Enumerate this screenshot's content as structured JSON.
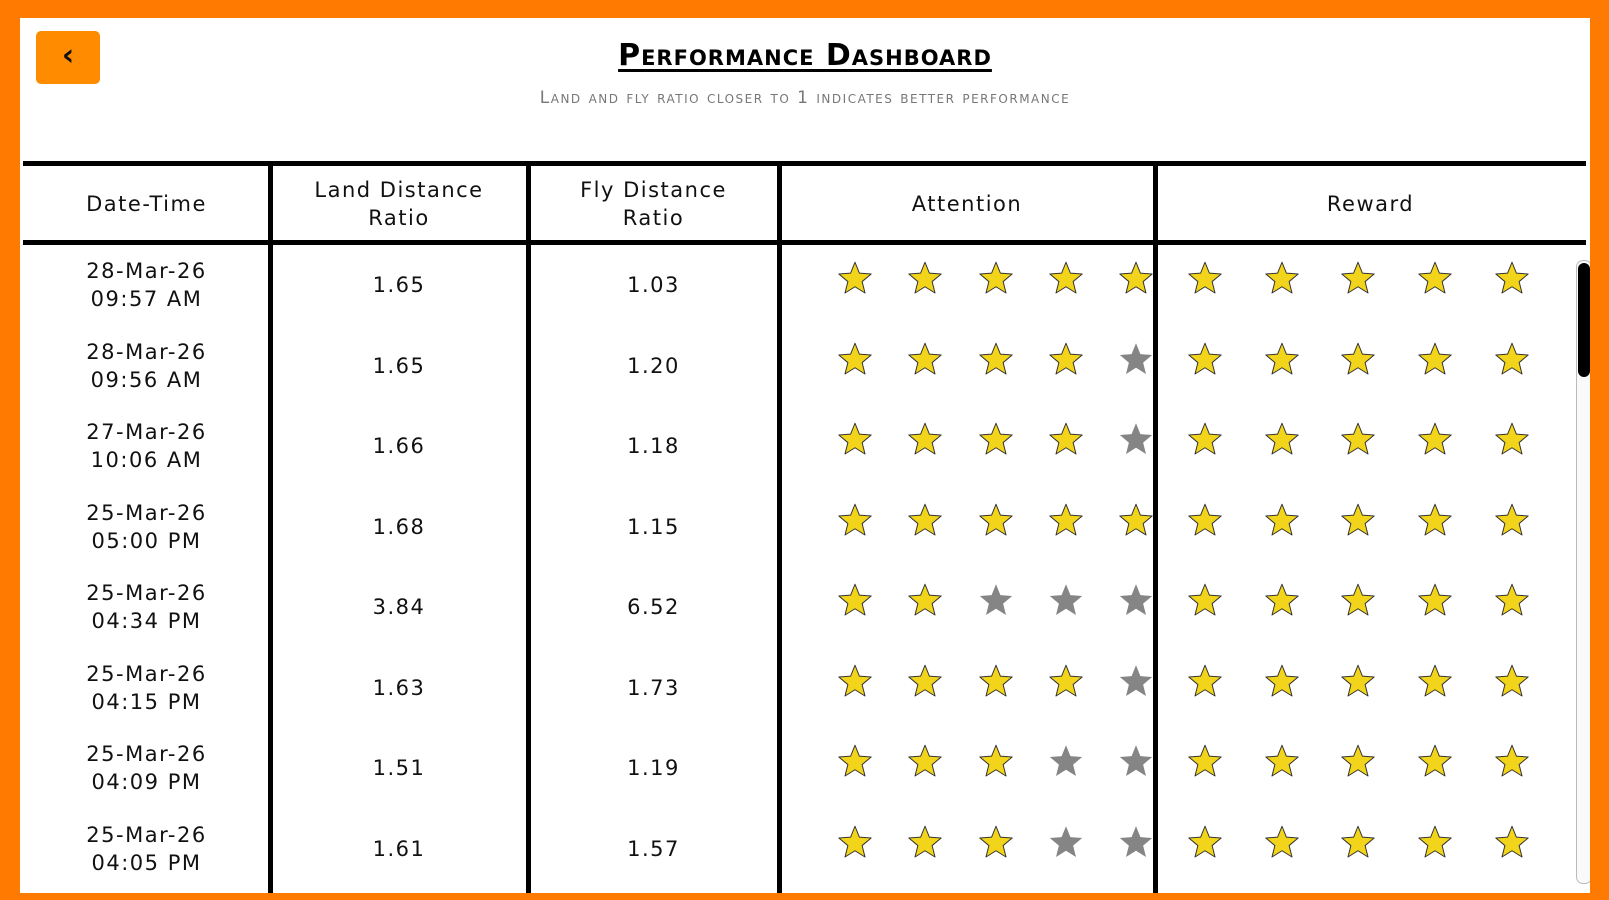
{
  "header": {
    "back_button": "‹",
    "title": "Performance Dashboard",
    "subtitle": "Land and fly ratio closer to 1 indicates better performance"
  },
  "table": {
    "columns": [
      "Date-Time",
      "Land Distance Ratio",
      "Fly Distance Ratio",
      "Attention",
      "Reward"
    ],
    "rows": [
      {
        "date": "28-Mar-26",
        "time": "09:57 AM",
        "land": "1.65",
        "fly": "1.03",
        "attention": 5,
        "reward": 5
      },
      {
        "date": "28-Mar-26",
        "time": "09:56 AM",
        "land": "1.65",
        "fly": "1.20",
        "attention": 4,
        "reward": 5
      },
      {
        "date": "27-Mar-26",
        "time": "10:06 AM",
        "land": "1.66",
        "fly": "1.18",
        "attention": 4,
        "reward": 5
      },
      {
        "date": "25-Mar-26",
        "time": "05:00 PM",
        "land": "1.68",
        "fly": "1.15",
        "attention": 5,
        "reward": 5
      },
      {
        "date": "25-Mar-26",
        "time": "04:34 PM",
        "land": "3.84",
        "fly": "6.52",
        "attention": 2,
        "reward": 5
      },
      {
        "date": "25-Mar-26",
        "time": "04:15 PM",
        "land": "1.63",
        "fly": "1.73",
        "attention": 4,
        "reward": 5
      },
      {
        "date": "25-Mar-26",
        "time": "04:09 PM",
        "land": "1.51",
        "fly": "1.19",
        "attention": 3,
        "reward": 5
      },
      {
        "date": "25-Mar-26",
        "time": "04:05 PM",
        "land": "1.61",
        "fly": "1.57",
        "attention": 3,
        "reward": 5
      }
    ]
  }
}
